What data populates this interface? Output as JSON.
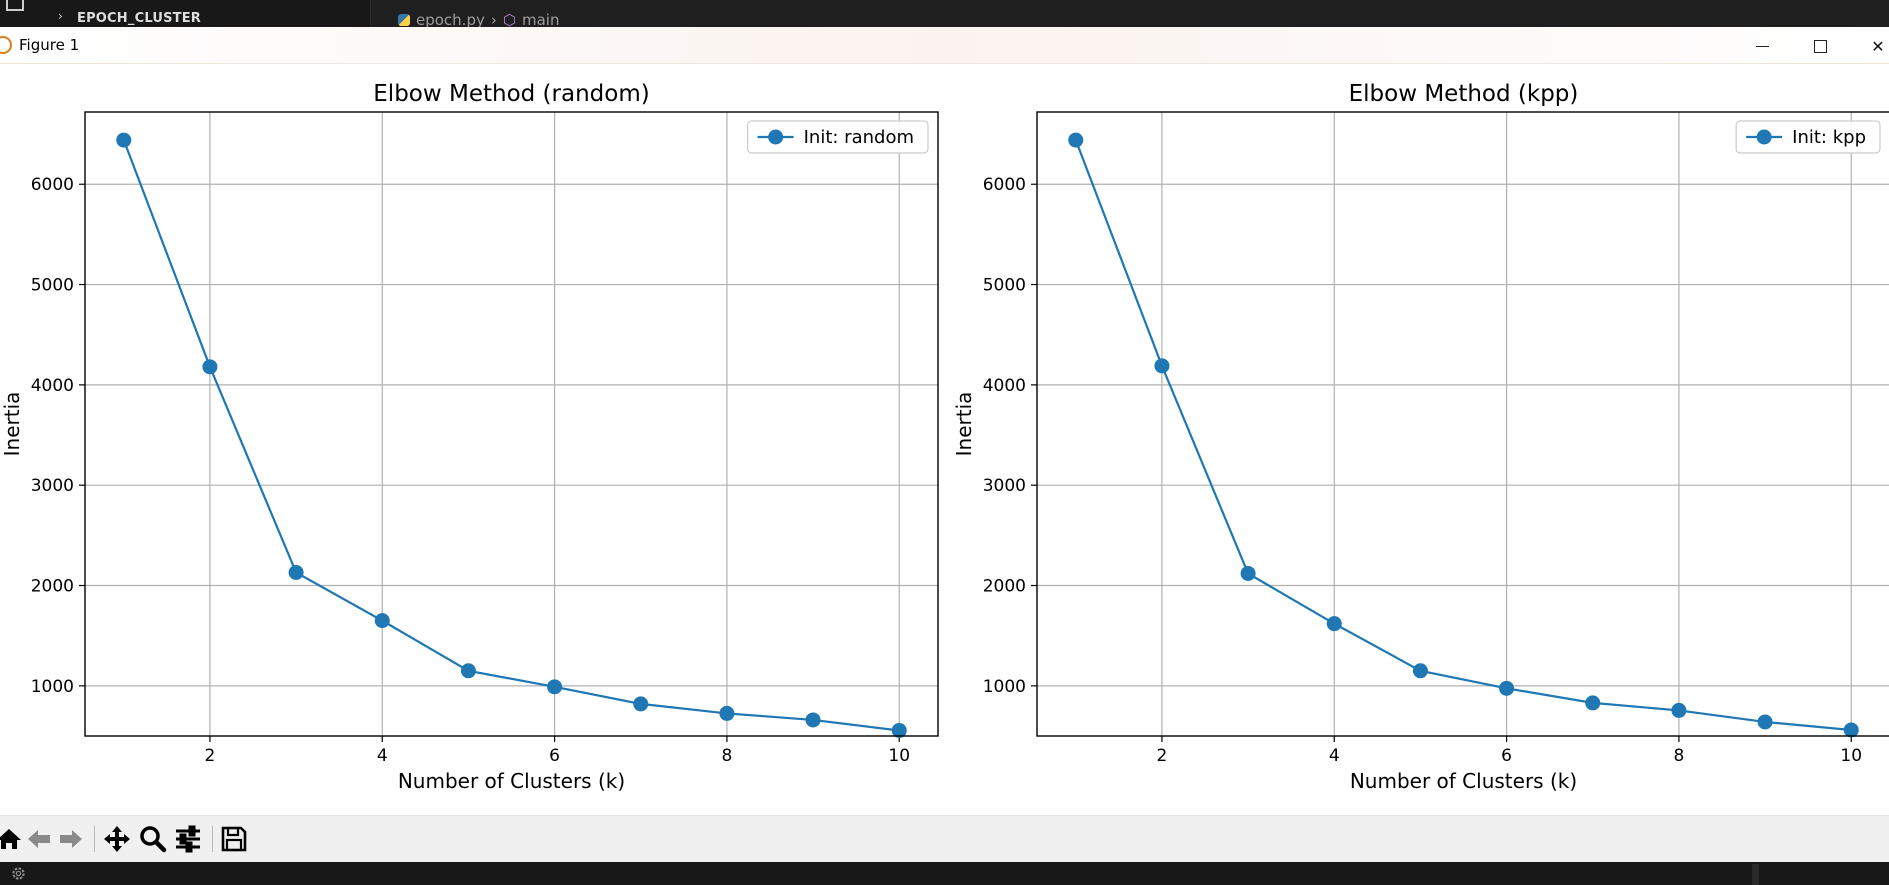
{
  "editor": {
    "project_label": "EPOCH_CLUSTER",
    "file_tab": "epoch.py",
    "symbol": "main"
  },
  "window": {
    "title": "Figure 1"
  },
  "chart_data": [
    {
      "type": "line",
      "title": "Elbow Method (random)",
      "xlabel": "Number of Clusters (k)",
      "ylabel": "Inertia",
      "x": [
        1,
        2,
        3,
        4,
        5,
        6,
        7,
        8,
        9,
        10
      ],
      "series": [
        {
          "name": "Init: random",
          "values": [
            6440,
            4180,
            2130,
            1650,
            1150,
            990,
            820,
            725,
            660,
            555
          ],
          "color": "#1f77b4",
          "marker": "circle"
        }
      ],
      "xlim": [
        0.55,
        10.45
      ],
      "ylim": [
        500,
        6720
      ],
      "xticks": [
        2,
        4,
        6,
        8,
        10
      ],
      "yticks": [
        1000,
        2000,
        3000,
        4000,
        5000,
        6000
      ],
      "grid": true,
      "legend_position": "top-right"
    },
    {
      "type": "line",
      "title": "Elbow Method (kpp)",
      "xlabel": "Number of Clusters (k)",
      "ylabel": "Inertia",
      "x": [
        1,
        2,
        3,
        4,
        5,
        6,
        7,
        8,
        9,
        10
      ],
      "series": [
        {
          "name": "Init: kpp",
          "values": [
            6440,
            4190,
            2120,
            1620,
            1150,
            975,
            830,
            755,
            640,
            560
          ],
          "color": "#1f77b4",
          "marker": "circle"
        }
      ],
      "xlim": [
        0.55,
        10.45
      ],
      "ylim": [
        500,
        6720
      ],
      "xticks": [
        2,
        4,
        6,
        8,
        10
      ],
      "yticks": [
        1000,
        2000,
        3000,
        4000,
        5000,
        6000
      ],
      "grid": true,
      "legend_position": "top-right"
    }
  ],
  "toolbar": {
    "buttons": [
      {
        "name": "home-button",
        "icon": "home-icon"
      },
      {
        "name": "back-button",
        "icon": "arrow-left-icon"
      },
      {
        "name": "forward-button",
        "icon": "arrow-right-icon"
      },
      {
        "name": "pan-button",
        "icon": "move-icon"
      },
      {
        "name": "zoom-button",
        "icon": "magnifier-icon"
      },
      {
        "name": "configure-subplots-button",
        "icon": "sliders-icon"
      },
      {
        "name": "save-figure-button",
        "icon": "floppy-disk-icon"
      }
    ]
  }
}
